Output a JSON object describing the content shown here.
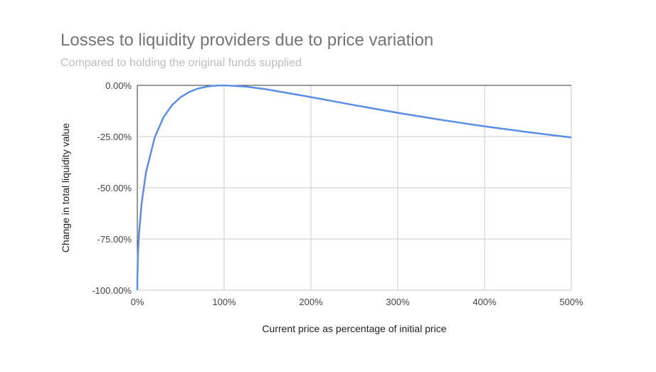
{
  "chart_data": {
    "type": "line",
    "title": "Losses to liquidity providers due to price variation",
    "subtitle": "Compared to holding the original funds supplied",
    "xlabel": "Current price as percentage of initial price",
    "ylabel": "Change in total liquidity value",
    "xlim": [
      0,
      500
    ],
    "ylim": [
      -100,
      0
    ],
    "x_ticks": [
      "0%",
      "100%",
      "200%",
      "300%",
      "400%",
      "500%"
    ],
    "y_ticks": [
      "0.00%",
      "-25.00%",
      "-50.00%",
      "-75.00%",
      "-100.00%"
    ],
    "grid": true,
    "line_color": "#5b8ee6",
    "x": [
      0,
      0.1,
      0.5,
      1,
      2,
      5,
      10,
      20,
      30,
      40,
      50,
      60,
      70,
      80,
      90,
      100,
      125,
      150,
      200,
      250,
      300,
      350,
      400,
      450,
      500
    ],
    "y": [
      -100,
      -93.7,
      -85.9,
      -80.2,
      -72.3,
      -57.4,
      -42.5,
      -25.5,
      -15.7,
      -9.65,
      -5.72,
      -3.18,
      -1.57,
      -0.62,
      -0.14,
      0,
      -0.62,
      -2.02,
      -5.72,
      -9.65,
      -13.4,
      -16.85,
      -20,
      -22.86,
      -25.46
    ]
  }
}
